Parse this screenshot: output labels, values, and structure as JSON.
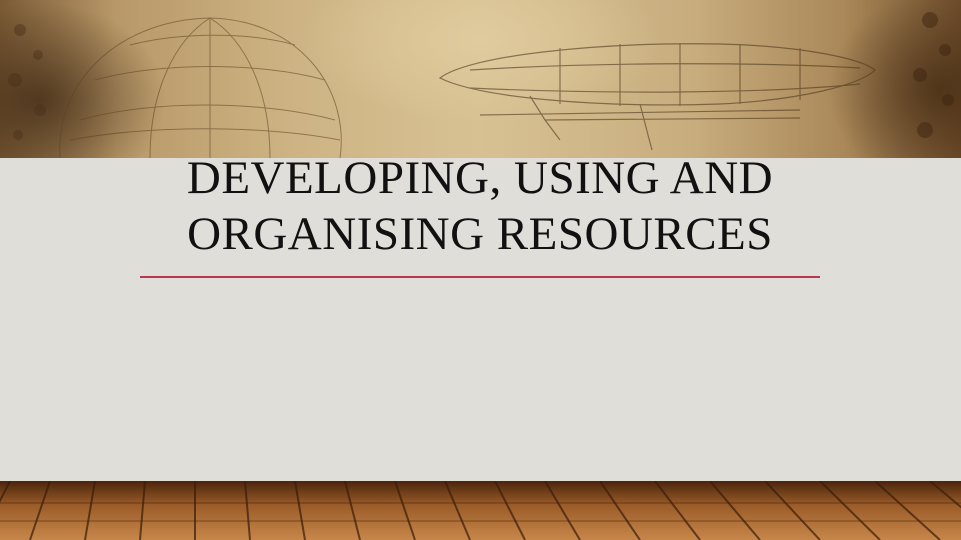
{
  "slide": {
    "title_line1": "DEVELOPING, USING AND",
    "title_line2": "ORGANISING RESOURCES"
  },
  "colors": {
    "accent_rule": "#b8384f",
    "background": "#e0ded9",
    "title_text": "#111111"
  },
  "decor": {
    "banner_image": "vintage-airship-parchment-illustration",
    "floor_image": "wooden-floorboards"
  }
}
